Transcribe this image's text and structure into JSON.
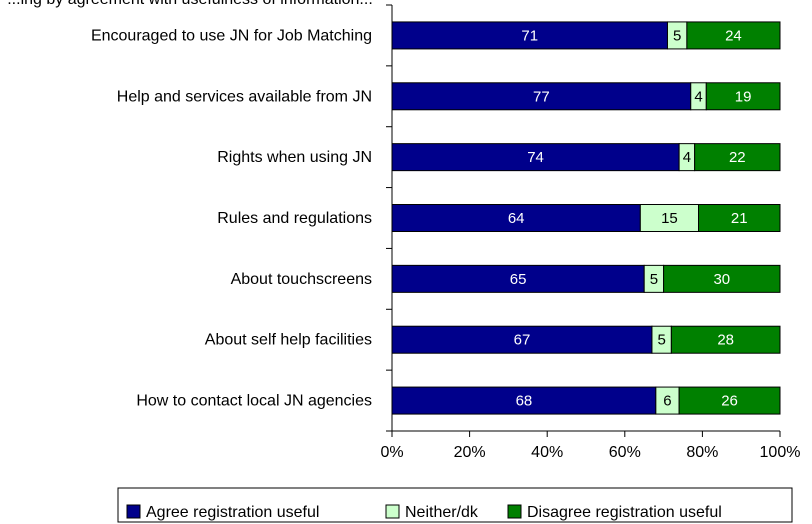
{
  "chart_data": {
    "type": "bar",
    "orientation": "horizontal",
    "stacked": "percent",
    "title_fragment": "...ing by agreement with usefulness of information...",
    "categories": [
      "Encouraged to use JN for Job Matching",
      "Help and services available from JN",
      "Rights when using JN",
      "Rules and regulations",
      "About touchscreens",
      "About self help facilities",
      "How to contact local JN agencies"
    ],
    "series": [
      {
        "name": "Agree registration useful",
        "color": "#00008b",
        "label_color": "#ffffff",
        "values": [
          71,
          77,
          74,
          64,
          65,
          67,
          68
        ]
      },
      {
        "name": "Neither/dk",
        "color": "#ccffcc",
        "label_color": "#000000",
        "values": [
          5,
          4,
          4,
          15,
          5,
          5,
          6
        ]
      },
      {
        "name": "Disagree registration useful",
        "color": "#008000",
        "label_color": "#ffffff",
        "values": [
          24,
          19,
          22,
          21,
          30,
          28,
          26
        ]
      }
    ],
    "xlim": [
      0,
      100
    ],
    "x_ticks": [
      "0%",
      "20%",
      "40%",
      "60%",
      "80%",
      "100%"
    ],
    "grid": false,
    "legend_position": "bottom"
  }
}
